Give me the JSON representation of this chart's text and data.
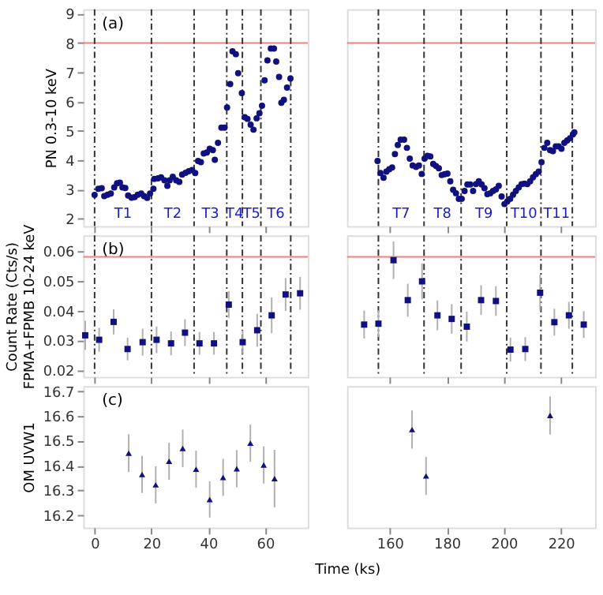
{
  "chart_data": [
    {
      "type": "scatter",
      "marker": "circle",
      "color": "#10107f",
      "ylabel": "PN 0.3-10 keV",
      "xlim": [
        -4,
        75
      ],
      "xticks": [
        0,
        20,
        40,
        60
      ],
      "ylim": [
        1.75,
        9.15
      ],
      "yticks": [
        2,
        3,
        4,
        5,
        6,
        7,
        8,
        9
      ],
      "tick_labels": "y",
      "x": [
        0,
        1.3,
        2.5,
        3.4,
        4.6,
        5.7,
        6.9,
        7.9,
        8.9,
        9.8,
        10.8,
        11.8,
        13.0,
        14.1,
        15.2,
        16.4,
        17.4,
        18.5,
        19.5,
        20.7,
        21.0,
        22.3,
        23.4,
        24.6,
        25.6,
        26.4,
        27.5,
        28.7,
        29.8,
        30.8,
        32.0,
        33.1,
        34.3,
        35.4,
        36.4,
        37.4,
        38.4,
        39.5,
        40.5,
        41.6,
        42.3,
        43.4,
        44.6,
        45.7,
        46.6,
        47.7,
        48.5,
        49.7,
        50.5,
        51.8,
        52.8,
        53.8,
        54.9,
        55.9,
        57.0,
        58.0,
        58.9,
        59.8,
        60.8,
        62.0,
        63.1,
        63.9,
        64.9,
        65.7,
        66.6,
        67.7,
        68.9
      ],
      "values": [
        2.81,
        3.02,
        3.04,
        2.77,
        2.82,
        2.86,
        3.07,
        3.21,
        3.23,
        3.07,
        3.05,
        2.79,
        2.72,
        2.74,
        2.82,
        2.86,
        2.77,
        2.71,
        2.86,
        3.02,
        3.36,
        3.38,
        3.41,
        3.31,
        3.12,
        3.31,
        3.43,
        3.31,
        3.26,
        3.51,
        3.57,
        3.62,
        3.66,
        3.56,
        3.97,
        3.93,
        4.23,
        4.26,
        4.39,
        4.34,
        4.01,
        4.59,
        5.11,
        5.11,
        5.8,
        6.6,
        7.72,
        7.62,
        6.97,
        6.29,
        5.47,
        5.41,
        5.21,
        5.04,
        5.43,
        5.6,
        5.86,
        6.73,
        7.41,
        7.81,
        7.81,
        7.37,
        6.84,
        5.96,
        6.06,
        6.48,
        6.79
      ],
      "ref_lines": [
        {
          "axis": "y",
          "value": 8,
          "color": "#f08080"
        },
        {
          "axis": "x",
          "value": 0,
          "line_style": "dashed",
          "color": "#333333"
        },
        {
          "axis": "x",
          "value": 20,
          "line_style": "dashed",
          "color": "#333333"
        },
        {
          "axis": "x",
          "value": 35,
          "line_style": "dashed",
          "color": "#333333"
        },
        {
          "axis": "x",
          "value": 46.5,
          "line_style": "dashed",
          "color": "#333333"
        },
        {
          "axis": "x",
          "value": 52,
          "line_style": "dashed",
          "color": "#333333"
        },
        {
          "axis": "x",
          "value": 58.5,
          "line_style": "dashed",
          "color": "#333333"
        },
        {
          "axis": "x",
          "value": 69,
          "line_style": "dashed",
          "color": "#333333"
        }
      ],
      "annotations": [
        "(a)",
        "T1",
        "T2",
        "T3",
        "T4",
        "T5",
        "T6"
      ]
    },
    {
      "type": "scatter",
      "marker": "circle",
      "color": "#10107f",
      "xlim": [
        145,
        232
      ],
      "xticks": [
        160,
        180,
        200,
        220
      ],
      "ylim": [
        1.75,
        9.15
      ],
      "tick_labels": false,
      "x": [
        155.7,
        156.7,
        157.8,
        158.8,
        159.8,
        160.8,
        161.8,
        162.8,
        163.8,
        165.0,
        166.0,
        167.0,
        168.0,
        169.2,
        170.2,
        171.2,
        172.2,
        173.2,
        174.2,
        175.2,
        176.2,
        177.2,
        178.2,
        179.2,
        180.2,
        181.2,
        182.2,
        183.2,
        184.2,
        185.2,
        186.2,
        187.2,
        188.2,
        189.2,
        190.2,
        191.2,
        192.2,
        193.2,
        194.2,
        195.2,
        196.2,
        197.2,
        198.2,
        199.2,
        200.2,
        201.2,
        202.2,
        203.2,
        204.2,
        205.2,
        206.2,
        207.2,
        208.2,
        209.2,
        210.2,
        211.2,
        212.2,
        213.2,
        214.2,
        215.2,
        216.2,
        217.2,
        218.2,
        219.2,
        220.2,
        221.2,
        222.2,
        223.2,
        224.2,
        224.7
      ],
      "values": [
        3.97,
        3.56,
        3.4,
        3.61,
        3.69,
        3.75,
        4.21,
        4.52,
        4.7,
        4.7,
        4.42,
        4.05,
        3.82,
        3.77,
        3.82,
        3.53,
        4.05,
        4.15,
        4.13,
        3.87,
        3.8,
        3.72,
        3.49,
        3.52,
        3.54,
        3.28,
        2.99,
        2.87,
        2.68,
        2.68,
        2.95,
        3.17,
        3.17,
        2.95,
        3.18,
        3.28,
        3.17,
        3.04,
        2.84,
        2.87,
        2.95,
        3.0,
        3.12,
        2.76,
        2.5,
        2.59,
        2.68,
        2.82,
        2.95,
        3.07,
        3.18,
        3.2,
        3.18,
        3.28,
        3.41,
        3.52,
        3.61,
        3.93,
        4.42,
        4.59,
        4.34,
        4.31,
        4.47,
        4.47,
        4.39,
        4.59,
        4.67,
        4.75,
        4.88,
        4.95
      ],
      "ref_lines": [
        {
          "axis": "y",
          "value": 8,
          "color": "#f08080"
        },
        {
          "axis": "x",
          "value": 156,
          "line_style": "dashed",
          "color": "#333333"
        },
        {
          "axis": "x",
          "value": 172,
          "line_style": "dashed",
          "color": "#333333"
        },
        {
          "axis": "x",
          "value": 185,
          "line_style": "dashed",
          "color": "#333333"
        },
        {
          "axis": "x",
          "value": 201,
          "line_style": "dashed",
          "color": "#333333"
        },
        {
          "axis": "x",
          "value": 213,
          "line_style": "dashed",
          "color": "#333333"
        },
        {
          "axis": "x",
          "value": 224,
          "line_style": "dashed",
          "color": "#333333"
        }
      ],
      "annotations": [
        "T7",
        "T8",
        "T9",
        "T10",
        "T11"
      ]
    },
    {
      "type": "scatter",
      "marker": "square",
      "color": "#10107f",
      "ylabel": "Count Rate (Cts/s)\nFPMA+FPMB 10-24 keV",
      "xlim": [
        -4,
        75
      ],
      "xticks": [
        0,
        20,
        40,
        60
      ],
      "ylim": [
        0.0178,
        0.0652
      ],
      "yticks": [
        0.02,
        0.03,
        0.04,
        0.05,
        0.06
      ],
      "tick_labels": "y",
      "x": [
        -3.3,
        1.6,
        6.7,
        11.6,
        16.9,
        21.8,
        26.9,
        31.8,
        36.9,
        42.0,
        47.2,
        52.1,
        57.2,
        62.3,
        67.2,
        72.3
      ],
      "values": [
        0.0317,
        0.0302,
        0.0362,
        0.0271,
        0.0294,
        0.0302,
        0.029,
        0.0326,
        0.029,
        0.029,
        0.042,
        0.0294,
        0.0334,
        0.0384,
        0.0454,
        0.0458
      ],
      "errors": [
        0.0049,
        0.004,
        0.0042,
        0.0038,
        0.0045,
        0.0045,
        0.004,
        0.0045,
        0.0038,
        0.0038,
        0.0045,
        0.004,
        0.0055,
        0.006,
        0.0055,
        0.0055
      ],
      "ref_lines": [
        {
          "axis": "y",
          "value": 0.058,
          "color": "#f08080"
        },
        {
          "axis": "x",
          "value": 0,
          "line_style": "dashed",
          "color": "#333333"
        },
        {
          "axis": "x",
          "value": 20,
          "line_style": "dashed",
          "color": "#333333"
        },
        {
          "axis": "x",
          "value": 35,
          "line_style": "dashed",
          "color": "#333333"
        },
        {
          "axis": "x",
          "value": 46.5,
          "line_style": "dashed",
          "color": "#333333"
        },
        {
          "axis": "x",
          "value": 52,
          "line_style": "dashed",
          "color": "#333333"
        },
        {
          "axis": "x",
          "value": 58.5,
          "line_style": "dashed",
          "color": "#333333"
        },
        {
          "axis": "x",
          "value": 69,
          "line_style": "dashed",
          "color": "#333333"
        }
      ],
      "annotations": [
        "(b)"
      ]
    },
    {
      "type": "scatter",
      "marker": "square",
      "color": "#10107f",
      "xlim": [
        145,
        232
      ],
      "xticks": [
        160,
        180,
        200,
        220
      ],
      "ylim": [
        0.0178,
        0.0652
      ],
      "tick_labels": false,
      "x": [
        151.0,
        156.0,
        161.3,
        166.3,
        171.3,
        176.7,
        181.7,
        187.0,
        192.0,
        197.2,
        202.3,
        207.5,
        212.7,
        217.7,
        222.8,
        228.0
      ],
      "values": [
        0.0353,
        0.0356,
        0.0569,
        0.0435,
        0.0498,
        0.0384,
        0.0372,
        0.0346,
        0.0435,
        0.0432,
        0.0269,
        0.0271,
        0.046,
        0.0361,
        0.0384,
        0.0353
      ],
      "errors": [
        0.0047,
        0.0045,
        0.0063,
        0.0055,
        0.006,
        0.005,
        0.005,
        0.005,
        0.005,
        0.005,
        0.004,
        0.004,
        0.006,
        0.0045,
        0.0045,
        0.0045
      ],
      "ref_lines": [
        {
          "axis": "y",
          "value": 0.058,
          "color": "#f08080"
        },
        {
          "axis": "x",
          "value": 156,
          "line_style": "dashed",
          "color": "#333333"
        },
        {
          "axis": "x",
          "value": 172,
          "line_style": "dashed",
          "color": "#333333"
        },
        {
          "axis": "x",
          "value": 185,
          "line_style": "dashed",
          "color": "#333333"
        },
        {
          "axis": "x",
          "value": 201,
          "line_style": "dashed",
          "color": "#333333"
        },
        {
          "axis": "x",
          "value": 213,
          "line_style": "dashed",
          "color": "#333333"
        },
        {
          "axis": "x",
          "value": 224,
          "line_style": "dashed",
          "color": "#333333"
        }
      ]
    },
    {
      "type": "scatter",
      "marker": "triangle",
      "color": "#10107f",
      "ylabel": "OM UVW1",
      "xlim": [
        -4,
        75
      ],
      "xticks": [
        0,
        20,
        40,
        60
      ],
      "ylim": [
        16.15,
        16.72
      ],
      "yticks": [
        16.2,
        16.3,
        16.4,
        16.5,
        16.6,
        16.7
      ],
      "x": [
        12.0,
        16.7,
        21.5,
        26.2,
        31.0,
        35.7,
        40.5,
        45.2,
        50.0,
        54.8,
        59.5,
        63.3
      ],
      "values": [
        16.45,
        16.364,
        16.322,
        16.417,
        16.469,
        16.385,
        16.263,
        16.352,
        16.387,
        16.49,
        16.402,
        16.347
      ],
      "errors": [
        0.076,
        0.075,
        0.075,
        0.075,
        0.076,
        0.075,
        0.073,
        0.075,
        0.075,
        0.075,
        0.075,
        0.116
      ],
      "annotations": [
        "(c)"
      ]
    },
    {
      "type": "scatter",
      "marker": "triangle",
      "color": "#10107f",
      "xlabel": "Time (ks)",
      "xlim": [
        145,
        232
      ],
      "xticks": [
        160,
        180,
        200,
        220
      ],
      "ylim": [
        16.15,
        16.72
      ],
      "tick_labels": "x",
      "x": [
        167.8,
        172.7,
        216.2
      ],
      "values": [
        16.545,
        16.358,
        16.602
      ],
      "errors": [
        0.077,
        0.077,
        0.077
      ]
    }
  ]
}
